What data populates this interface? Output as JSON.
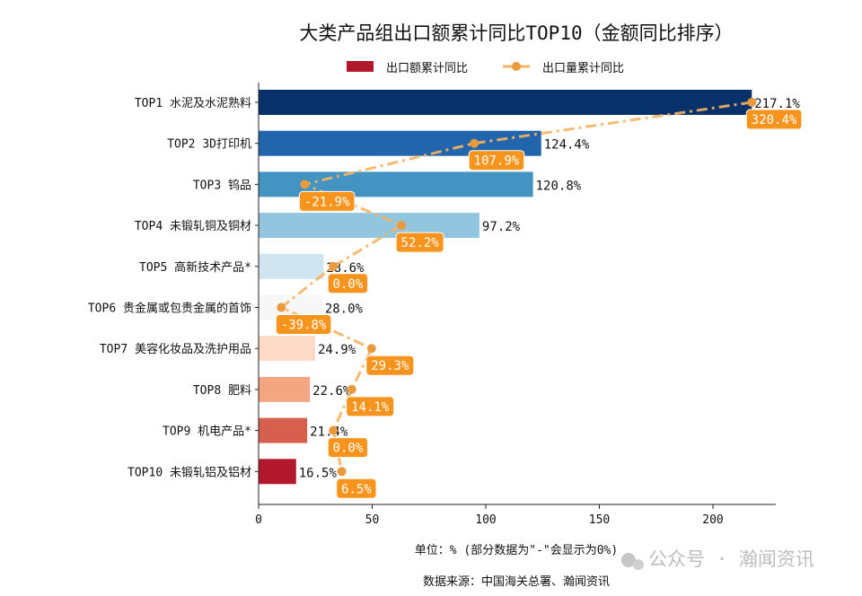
{
  "chart_data": {
    "type": "bar",
    "orientation": "horizontal",
    "title": "大类产品组出口额累计同比TOP10（金额同比排序）",
    "xlabel": "单位：%  (部分数据为\"-\"会显示为0%)",
    "source": "数据来源：中国海关总署、瀚闻资讯",
    "watermark": "公众号 · 瀚闻资讯",
    "xlim": [
      0,
      227
    ],
    "xticks": [
      0,
      50,
      100,
      150,
      200
    ],
    "grid": false,
    "legend_position": "top-center",
    "categories": [
      "TOP1 水泥及水泥熟料",
      "TOP2 3D打印机",
      "TOP3 钨品",
      "TOP4 未锻轧铜及铜材",
      "TOP5 高新技术产品*",
      "TOP6 贵金属或包贵金属的首饰",
      "TOP7 美容化妆品及洗护用品",
      "TOP8 肥料",
      "TOP9 机电产品*",
      "TOP10 未锻轧铝及铝材"
    ],
    "series": [
      {
        "name": "出口额累计同比",
        "type": "bar",
        "values": [
          217.1,
          124.4,
          120.8,
          97.2,
          28.6,
          28.0,
          24.9,
          22.6,
          21.4,
          16.5
        ],
        "labels": [
          "217.1%",
          "124.4%",
          "120.8%",
          "97.2%",
          "28.6%",
          "28.0%",
          "24.9%",
          "22.6%",
          "21.4%",
          "16.5%"
        ],
        "colors": [
          "#08306b",
          "#2166ac",
          "#4393c3",
          "#92c5de",
          "#d1e5f0",
          "#f7f7f7",
          "#fddbc7",
          "#f4a582",
          "#d6604d",
          "#b2182b"
        ],
        "legend_color": "#b2182b"
      },
      {
        "name": "出口量累计同比",
        "type": "line",
        "style": "dash-dot",
        "values": [
          320.4,
          107.9,
          -21.9,
          52.2,
          0.0,
          -39.8,
          29.3,
          14.1,
          0.0,
          6.5
        ],
        "labels": [
          "320.4%",
          "107.9%",
          "-21.9%",
          "52.2%",
          "0.0%",
          "-39.8%",
          "29.3%",
          "14.1%",
          "0.0%",
          "6.5%"
        ],
        "color": "#f5b461",
        "marker_color": "#e89a3c",
        "label_bg": "#f7941d"
      }
    ]
  }
}
